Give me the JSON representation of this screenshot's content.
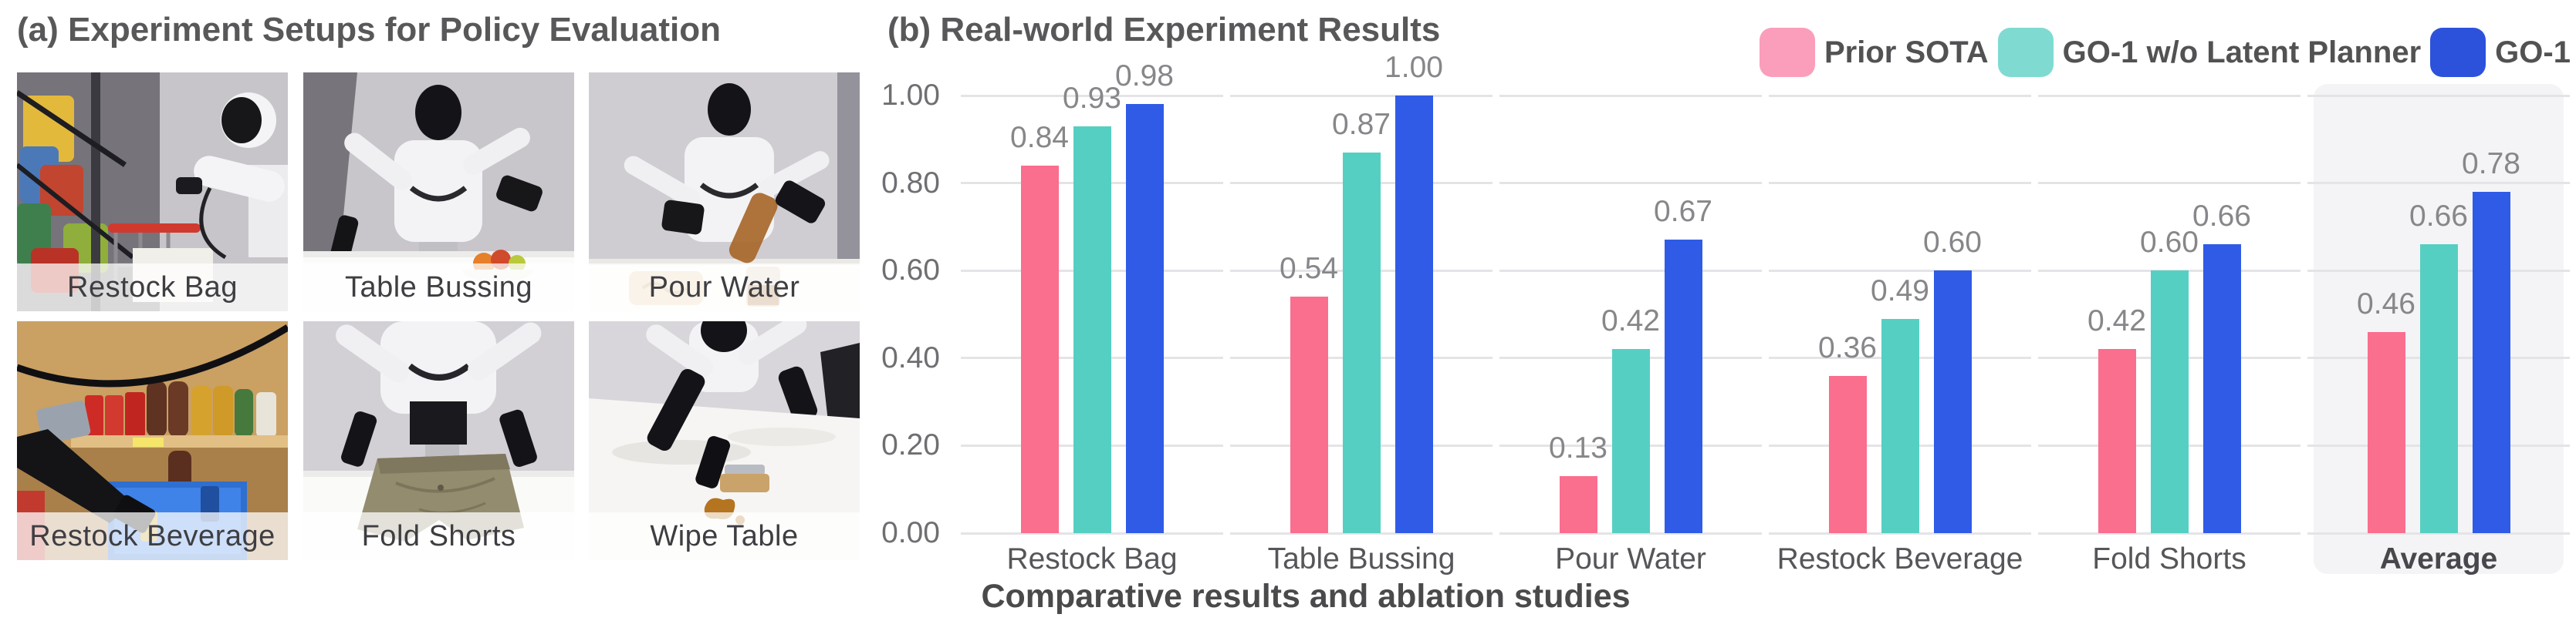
{
  "panel_a": {
    "title": "(a) Experiment Setups for Policy Evaluation",
    "setups": [
      {
        "label": "Restock Bag"
      },
      {
        "label": "Table Bussing"
      },
      {
        "label": "Pour Water"
      },
      {
        "label": "Restock Beverage"
      },
      {
        "label": "Fold Shorts"
      },
      {
        "label": "Wipe Table"
      }
    ]
  },
  "panel_b": {
    "title": "(b) Real-world Experiment Results",
    "caption": "Comparative results and ablation studies",
    "legend": [
      {
        "label": "Prior SOTA",
        "color": "#fa9ebb"
      },
      {
        "label": "GO-1 w/o Latent Planner",
        "color": "#7fdbd2"
      },
      {
        "label": "GO-1",
        "color": "#2c52dc"
      }
    ]
  },
  "chart_data": {
    "type": "bar",
    "title": "(b) Real-world Experiment Results",
    "categories": [
      "Restock Bag",
      "Table Bussing",
      "Pour Water",
      "Restock Beverage",
      "Fold Shorts",
      "Average"
    ],
    "series": [
      {
        "name": "Prior SOTA",
        "color": "#fa6e8e",
        "values": [
          0.84,
          0.54,
          0.13,
          0.36,
          0.42,
          0.46
        ]
      },
      {
        "name": "GO-1 w/o Latent Planner",
        "color": "#56cfc3",
        "values": [
          0.93,
          0.87,
          0.42,
          0.49,
          0.6,
          0.66
        ]
      },
      {
        "name": "GO-1",
        "color": "#2f5be6",
        "values": [
          0.98,
          1.0,
          0.67,
          0.6,
          0.66,
          0.78
        ]
      }
    ],
    "ylim": [
      0,
      1
    ],
    "yticks": [
      0.0,
      0.2,
      0.4,
      0.6,
      0.8,
      1.0
    ],
    "grid": true,
    "legend_position": "top-right",
    "value_labels": true,
    "highlight_category": "Average",
    "highlight_bg": "#f4f4f6",
    "xlabel": "",
    "ylabel": ""
  }
}
